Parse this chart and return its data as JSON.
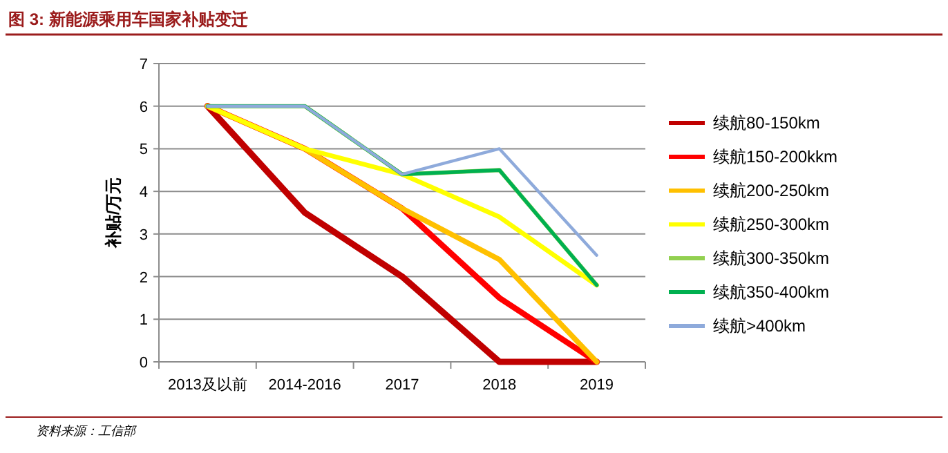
{
  "chart_data": {
    "type": "line",
    "title": "图 3: 新能源乘用车国家补贴变迁",
    "ylabel": "补贴/万元",
    "categories": [
      "2013及以前",
      "2014-2016",
      "2017",
      "2018",
      "2019"
    ],
    "series": [
      {
        "name": "续航80-150km",
        "color": "#c00000",
        "values": [
          6,
          3.5,
          2,
          0,
          0
        ]
      },
      {
        "name": "续航150-200kkm",
        "color": "#ff0000",
        "values": [
          6,
          5,
          3.6,
          1.5,
          0
        ]
      },
      {
        "name": "续航200-250km",
        "color": "#ffc000",
        "values": [
          6,
          5,
          3.6,
          2.4,
          0
        ]
      },
      {
        "name": "续航250-300km",
        "color": "#ffff00",
        "values": [
          6,
          5,
          4.4,
          3.4,
          1.8
        ]
      },
      {
        "name": "续航300-350km",
        "color": "#92d050",
        "values": [
          6,
          6,
          4.4,
          4.5,
          1.8
        ]
      },
      {
        "name": "续航350-400km",
        "color": "#00b050",
        "values": [
          6,
          6,
          4.4,
          4.5,
          1.8
        ]
      },
      {
        "name": "续航>400km",
        "color": "#8eaadb",
        "values": [
          6,
          6,
          4.4,
          5,
          2.5
        ]
      }
    ],
    "ylim": [
      0,
      7
    ],
    "yticks": [
      0,
      1,
      2,
      3,
      4,
      5,
      6,
      7
    ],
    "grid": "y",
    "legend": "right",
    "marker": "none",
    "line_style": "solid",
    "annotations": [
      "资料来源：工信部"
    ]
  }
}
